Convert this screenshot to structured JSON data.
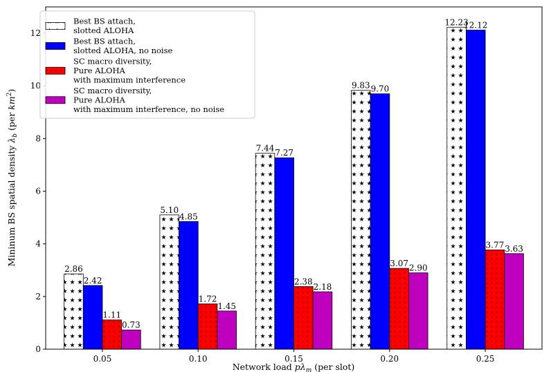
{
  "chart_data": {
    "type": "bar",
    "xlabel": "Network load pλm (per slot)",
    "ylabel": "Mininum BS spatial density λb (per km²)",
    "categories": [
      "0.05",
      "0.10",
      "0.15",
      "0.20",
      "0.25"
    ],
    "ylim": [
      0,
      13
    ],
    "yticks": [
      "0",
      "2",
      "4",
      "6",
      "8",
      "10",
      "12"
    ],
    "grid": false,
    "legend_position": "top-left",
    "series": [
      {
        "name": "Best BS attach, slotted ALOHA",
        "legend_lines": [
          "Best BS attach,",
          "slotted ALOHA"
        ],
        "values": [
          2.86,
          5.1,
          7.44,
          9.83,
          12.23
        ],
        "labels": [
          "2.86",
          "5.10",
          "7.44",
          "9.83",
          "12.23"
        ],
        "color": "#ffffff",
        "pattern": "stars"
      },
      {
        "name": "Best BS attach, slotted ALOHA, no noise",
        "legend_lines": [
          "Best BS attach,",
          "slotted ALOHA, no noise"
        ],
        "values": [
          2.42,
          4.85,
          7.27,
          9.7,
          12.12
        ],
        "labels": [
          "2.42",
          "4.85",
          "7.27",
          "9.70",
          "12.12"
        ],
        "color": "#0000ff",
        "pattern": "none"
      },
      {
        "name": "SC macro diversity, Pure ALOHA with maximum interference",
        "legend_lines": [
          "SC macro diversity,",
          "Pure ALOHA",
          "with maximum interference"
        ],
        "values": [
          1.11,
          1.72,
          2.38,
          3.07,
          3.77
        ],
        "labels": [
          "1.11",
          "1.72",
          "2.38",
          "3.07",
          "3.77"
        ],
        "color": "#ff0000",
        "pattern": "circles"
      },
      {
        "name": "SC macro diversity, Pure ALOHA with maximum interference, no noise",
        "legend_lines": [
          "SC macro diversity,",
          "Pure ALOHA",
          "with maximum interference, no noise"
        ],
        "values": [
          0.73,
          1.45,
          2.18,
          2.9,
          3.63
        ],
        "labels": [
          "0.73",
          "1.45",
          "2.18",
          "2.90",
          "3.63"
        ],
        "color": "#bf00bf",
        "pattern": "none"
      }
    ]
  }
}
